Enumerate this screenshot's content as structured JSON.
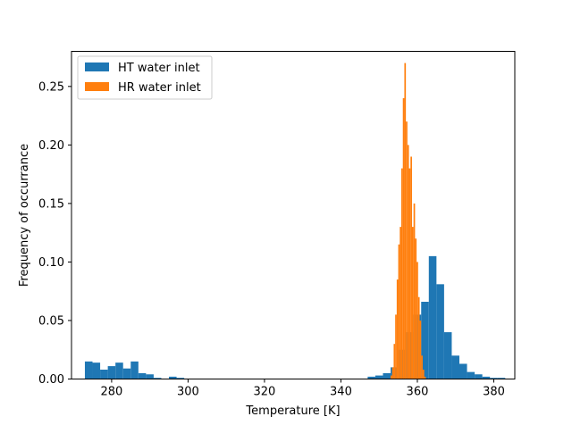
{
  "chart_data": {
    "type": "histogram",
    "title": "",
    "xlabel": "Temperature [K]",
    "ylabel": "Frequency of occurrance",
    "xlim": [
      269.5,
      385.5
    ],
    "ylim": [
      0,
      0.28
    ],
    "xticks": [
      280,
      300,
      320,
      340,
      360,
      380
    ],
    "yticks": [
      0.0,
      0.05,
      0.1,
      0.15,
      0.2,
      0.25
    ],
    "grid": false,
    "legend_position": "top-left",
    "series": [
      {
        "name": "HT water inlet",
        "color": "#1f77b4",
        "bin_edges": [
          273,
          275,
          277,
          279,
          281,
          283,
          285,
          287,
          289,
          291,
          293,
          295,
          297,
          299,
          301,
          303,
          305,
          307,
          309,
          311,
          313,
          315,
          317,
          319,
          321,
          323,
          325,
          327,
          329,
          331,
          333,
          335,
          337,
          339,
          341,
          343,
          345,
          347,
          349,
          351,
          353,
          355,
          357,
          359,
          361,
          363,
          365,
          367,
          369,
          371,
          373,
          375,
          377,
          379,
          381,
          383
        ],
        "values": [
          0.015,
          0.014,
          0.008,
          0.011,
          0.014,
          0.009,
          0.015,
          0.005,
          0.004,
          0.001,
          0.0,
          0.002,
          0.001,
          0.0,
          0.0,
          0.0,
          0.0,
          0.0,
          0.0,
          0.0,
          0.0,
          0.0,
          0.0,
          0.0,
          0.0,
          0.0,
          0.0,
          0.0,
          0.0,
          0.0,
          0.0,
          0.0,
          0.0,
          0.0,
          0.0,
          0.0,
          0.0,
          0.002,
          0.003,
          0.005,
          0.01,
          0.025,
          0.04,
          0.055,
          0.066,
          0.105,
          0.081,
          0.04,
          0.02,
          0.013,
          0.006,
          0.004,
          0.002,
          0.001,
          0.001
        ]
      },
      {
        "name": "HR water inlet",
        "color": "#ff7f0e",
        "bin_edges": [
          353.0,
          353.4,
          353.8,
          354.2,
          354.6,
          355.0,
          355.4,
          355.8,
          356.2,
          356.6,
          357.0,
          357.4,
          357.8,
          358.2,
          358.6,
          359.0,
          359.4,
          359.8,
          360.2,
          360.6,
          361.0,
          361.4,
          361.8,
          362.2
        ],
        "values": [
          0.003,
          0.01,
          0.03,
          0.055,
          0.085,
          0.115,
          0.13,
          0.18,
          0.24,
          0.27,
          0.22,
          0.2,
          0.18,
          0.19,
          0.13,
          0.15,
          0.12,
          0.1,
          0.07,
          0.05,
          0.02,
          0.008,
          0.002
        ]
      }
    ]
  }
}
